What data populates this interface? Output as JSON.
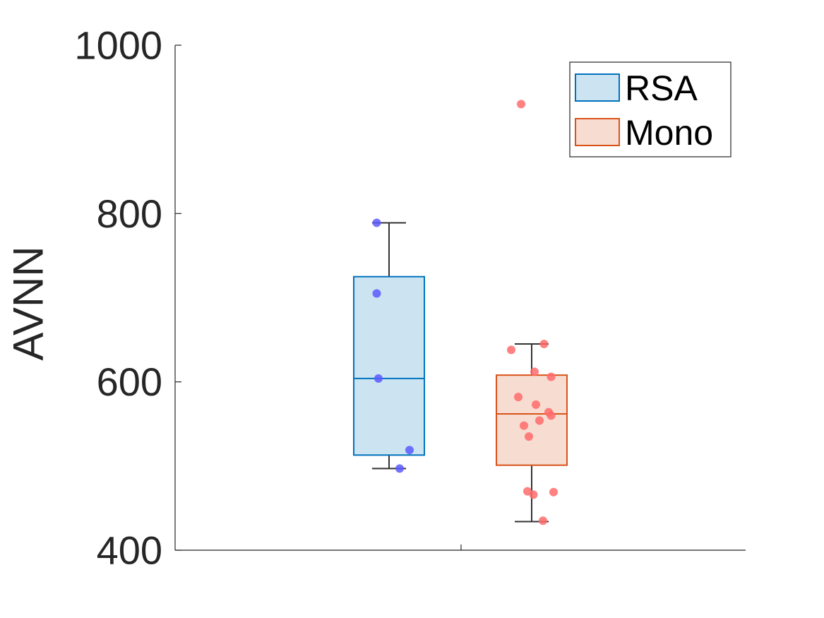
{
  "chart_data": {
    "type": "box",
    "title": "",
    "xlabel": "",
    "ylabel": "AVNN",
    "ylim": [
      400,
      1000
    ],
    "yticks": [
      400,
      600,
      800,
      1000
    ],
    "ytick_labels": [
      "400",
      "600",
      "800",
      "1000"
    ],
    "grid": false,
    "legend_position": "top-right",
    "series": [
      {
        "name": "RSA",
        "stroke": "#0072BD",
        "fill": "#CCE3F2",
        "point_color": "#5B5BFF",
        "box": {
          "whisker_low": 497,
          "q1": 513,
          "median": 604,
          "q3": 725,
          "whisker_high": 789
        },
        "points": [
          {
            "offset": -0.35,
            "value": 789
          },
          {
            "offset": -0.35,
            "value": 705
          },
          {
            "offset": -0.3,
            "value": 604
          },
          {
            "offset": 0.58,
            "value": 519
          },
          {
            "offset": 0.3,
            "value": 497
          }
        ]
      },
      {
        "name": "Mono",
        "stroke": "#D95319",
        "fill": "#F7DCD1",
        "point_color": "#FF6B6B",
        "box": {
          "whisker_low": 434,
          "q1": 501,
          "median": 562,
          "q3": 608,
          "whisker_high": 645
        },
        "points": [
          {
            "offset": -0.3,
            "value": 930
          },
          {
            "offset": 0.35,
            "value": 645
          },
          {
            "offset": -0.58,
            "value": 638
          },
          {
            "offset": 0.08,
            "value": 612
          },
          {
            "offset": 0.55,
            "value": 606
          },
          {
            "offset": -0.38,
            "value": 582
          },
          {
            "offset": 0.12,
            "value": 573
          },
          {
            "offset": 0.48,
            "value": 564
          },
          {
            "offset": 0.55,
            "value": 560
          },
          {
            "offset": 0.22,
            "value": 554
          },
          {
            "offset": -0.22,
            "value": 548
          },
          {
            "offset": -0.08,
            "value": 535
          },
          {
            "offset": -0.12,
            "value": 470
          },
          {
            "offset": 0.62,
            "value": 469
          },
          {
            "offset": 0.05,
            "value": 466
          },
          {
            "offset": 0.32,
            "value": 435
          }
        ]
      }
    ]
  }
}
